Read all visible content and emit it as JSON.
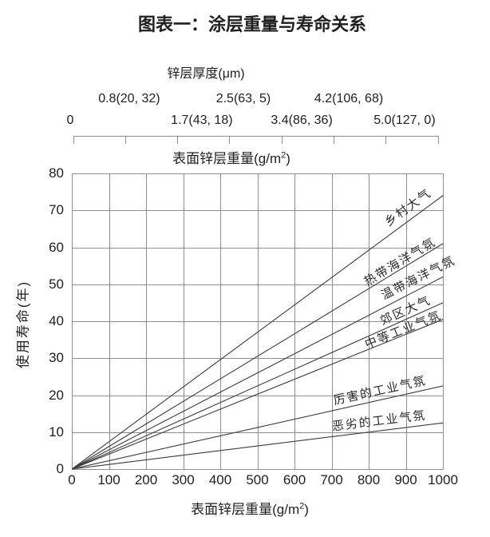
{
  "title": "图表一：涂层重量与寿命关系",
  "colors": {
    "axis": "#8f8f8f",
    "grid": "#8f8f8f",
    "line": "#3c3c3c",
    "text": "#1f1f1f"
  },
  "top_axis": {
    "title": "锌层厚度(μm)",
    "row_upper": [
      {
        "text": "0.8(20, 32)",
        "pos": 0.153
      },
      {
        "text": "2.5(63, 5)",
        "pos": 0.466
      },
      {
        "text": "4.2(106, 68)",
        "pos": 0.755
      }
    ],
    "row_lower": [
      {
        "text": "0",
        "pos": -0.009
      },
      {
        "text": "1.7(43, 18)",
        "pos": 0.352
      },
      {
        "text": "3.4(86, 36)",
        "pos": 0.626
      },
      {
        "text": "5.0(127, 0)",
        "pos": 0.908
      }
    ],
    "tick_count": 8
  },
  "weight_axis_label": {
    "prefix": "表面锌层重量(g/m",
    "sup": "2",
    "suffix": ")"
  },
  "chart_data": {
    "type": "line",
    "title": "图表一：涂层重量与寿命关系",
    "xlabel": "表面锌层重量(g/m²)",
    "ylabel": "使用寿命(年)",
    "xlim": [
      0,
      1000
    ],
    "ylim": [
      0,
      80
    ],
    "x_ticks": [
      0,
      100,
      200,
      300,
      400,
      500,
      600,
      700,
      800,
      900,
      1000
    ],
    "y_ticks": [
      0,
      10,
      20,
      30,
      40,
      50,
      60,
      70,
      80
    ],
    "grid": true,
    "legend_position": "inline-rotated-labels",
    "series": [
      {
        "name": "乡村大气",
        "x": [
          0,
          1000
        ],
        "y": [
          0,
          74
        ],
        "label": {
          "x": 905,
          "y": 71.0,
          "angle": -36
        }
      },
      {
        "name": "热带海洋气氛",
        "x": [
          0,
          1000
        ],
        "y": [
          0,
          61
        ],
        "label": {
          "x": 884,
          "y": 56.3,
          "angle": -31
        }
      },
      {
        "name": "温带海洋气氛",
        "x": [
          0,
          1000
        ],
        "y": [
          0,
          52
        ],
        "label": {
          "x": 933,
          "y": 51.8,
          "angle": -27
        }
      },
      {
        "name": "郊区大气",
        "x": [
          0,
          1000
        ],
        "y": [
          0,
          45
        ],
        "label": {
          "x": 899,
          "y": 43.0,
          "angle": -24
        }
      },
      {
        "name": "中等工业气氛",
        "x": [
          0,
          1000
        ],
        "y": [
          0,
          40.5
        ],
        "label": {
          "x": 892,
          "y": 37.8,
          "angle": -22
        }
      },
      {
        "name": "厉害的工业气氛",
        "x": [
          0,
          1000
        ],
        "y": [
          0,
          22.5
        ],
        "label": {
          "x": 830,
          "y": 21.5,
          "angle": -12.5
        }
      },
      {
        "name": "恶劣的工业气氛",
        "x": [
          0,
          1000
        ],
        "y": [
          0,
          12.5
        ],
        "label": {
          "x": 828,
          "y": 13.1,
          "angle": -7
        }
      }
    ]
  }
}
